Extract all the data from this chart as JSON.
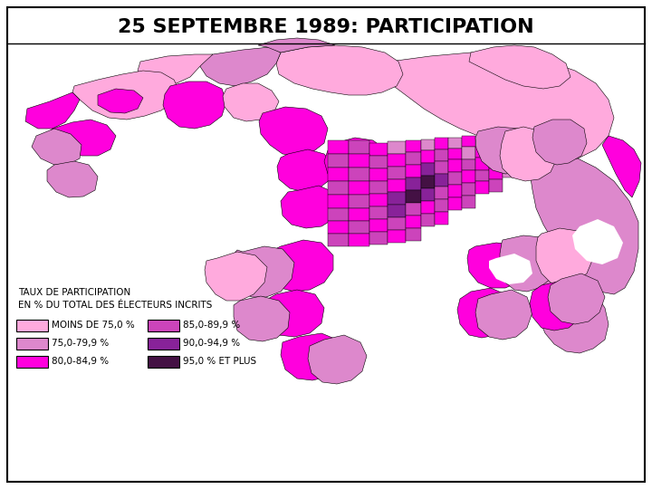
{
  "title": "25 SEPTEMBRE 1989: PARTICIPATION",
  "title_fontsize": 16,
  "title_fontweight": "bold",
  "background_color": "#ffffff",
  "legend_title_line1": "TAUX DE PARTICIPATION",
  "legend_title_line2": "EN % DU TOTAL DES ÉLECTEURS INCRITS",
  "legend_items": [
    {
      "label": "MOINS DE 75,0 %",
      "color": "#ffaadd"
    },
    {
      "label": "75,0-79,9 %",
      "color": "#dd88cc"
    },
    {
      "label": "80,0-84,9 %",
      "color": "#ff00dd"
    },
    {
      "label": "85,0-89,9 %",
      "color": "#cc44bb"
    },
    {
      "label": "90,0-94,9 %",
      "color": "#882299"
    },
    {
      "label": "95,0 % ET PLUS",
      "color": "#441144"
    }
  ],
  "legend_fontsize": 7.5,
  "legend_title_fontsize": 7.5,
  "map_colors": {
    "c1": "#ffaadd",
    "c2": "#dd88cc",
    "c3": "#ff00dd",
    "c4": "#cc44bb",
    "c5": "#882299",
    "c6": "#441144"
  },
  "fig_width": 7.2,
  "fig_height": 5.4,
  "dpi": 100
}
